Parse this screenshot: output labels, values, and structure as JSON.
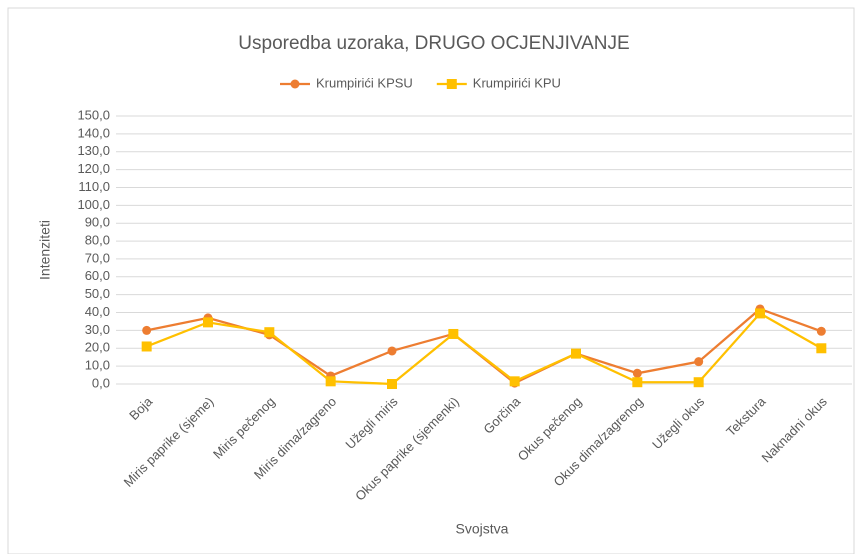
{
  "chart_data": {
    "type": "line",
    "title": "Usporedba uzoraka, DRUGO OCJENJIVANJE",
    "x_label": "Svojstva",
    "y_label": "Intenziteti",
    "categories": [
      "Boja",
      "Miris paprike (sjeme)",
      "Miris pečenog",
      "Miris dima/zagreno",
      "Užegli miris",
      "Okus paprike (sjemenki)",
      "Gorčina",
      "Okus pečenog",
      "Okus dima/zagrenog",
      "Užegli okus",
      "Tekstura",
      "Naknadni okus"
    ],
    "series": [
      {
        "name": "Krumpirići KPSU",
        "color": "#ED7D31",
        "marker": "circle",
        "values": [
          30,
          37,
          27.5,
          4.5,
          18.5,
          28,
          0.5,
          17,
          6,
          12.5,
          42,
          29.5
        ]
      },
      {
        "name": "Krumpirići KPU",
        "color": "#FFC000",
        "marker": "square",
        "values": [
          21,
          34.5,
          29,
          1.5,
          0,
          28,
          1.5,
          17,
          1,
          1,
          39.5,
          20
        ]
      }
    ],
    "ylim": [
      0,
      150
    ],
    "yticks": [
      {
        "value": 0,
        "label": "0,0"
      },
      {
        "value": 10,
        "label": "10,0"
      },
      {
        "value": 20,
        "label": "20,0"
      },
      {
        "value": 30,
        "label": "30,0"
      },
      {
        "value": 40,
        "label": "40,0"
      },
      {
        "value": 50,
        "label": "50,0"
      },
      {
        "value": 60,
        "label": "60,0"
      },
      {
        "value": 70,
        "label": "70,0"
      },
      {
        "value": 80,
        "label": "80,0"
      },
      {
        "value": 90,
        "label": "90,0"
      },
      {
        "value": 100,
        "label": "100,0"
      },
      {
        "value": 110,
        "label": "110,0"
      },
      {
        "value": 120,
        "label": "120,0"
      },
      {
        "value": 130,
        "label": "130,0"
      },
      {
        "value": 140,
        "label": "140,0"
      },
      {
        "value": 150,
        "label": "150,0"
      }
    ],
    "grid": true,
    "legend": "top"
  }
}
